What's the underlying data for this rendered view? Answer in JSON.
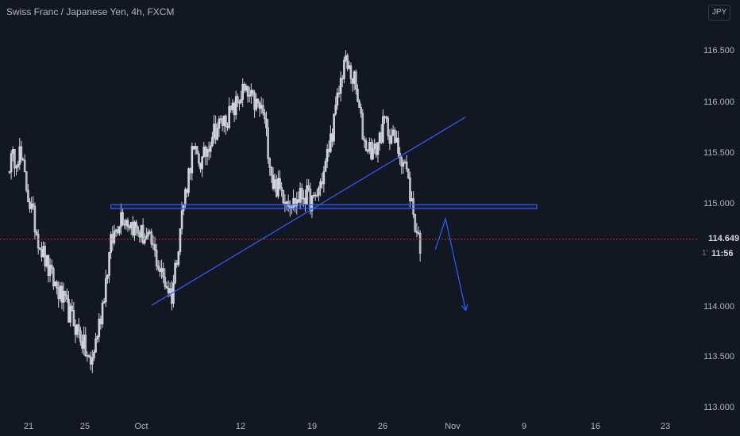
{
  "header": {
    "title": "Swiss Franc / Japanese Yen, 4h, FXCM"
  },
  "axis": {
    "currency": "JPY",
    "price_ticks": [
      "116.500",
      "116.000",
      "115.500",
      "115.000",
      "114.500",
      "114.000",
      "113.500",
      "113.000"
    ],
    "date_ticks": [
      "21",
      "25",
      "Oct",
      "12",
      "19",
      "26",
      "Nov",
      "9",
      "16",
      "23"
    ],
    "current_price": "114.649",
    "countdown_mark": "1'",
    "countdown": "11:56"
  },
  "colors": {
    "background": "#131722",
    "candle": "#d1d4dc",
    "drawing": "#2962ff",
    "price_line": "#f23645"
  },
  "chart_data": {
    "type": "candlestick",
    "title": "Swiss Franc / Japanese Yen, 4h, FXCM",
    "ylim": [
      113.0,
      116.8
    ],
    "grid": false,
    "path": [
      [
        "Sep 18",
        115.4
      ],
      [
        "Sep 19",
        115.5
      ],
      [
        "Sep 20",
        115.0
      ],
      [
        "Sep 21",
        114.6
      ],
      [
        "Sep 22",
        114.3
      ],
      [
        "Sep 23",
        114.1
      ],
      [
        "Sep 24",
        113.9
      ],
      [
        "Sep 25",
        113.7
      ],
      [
        "Sep 26",
        113.4
      ],
      [
        "Sep 27",
        113.9
      ],
      [
        "Sep 28",
        114.6
      ],
      [
        "Sep 29",
        114.9
      ],
      [
        "Sep 30",
        114.8
      ],
      [
        "Oct 1",
        114.7
      ],
      [
        "Oct 2",
        114.6
      ],
      [
        "Oct 3",
        114.3
      ],
      [
        "Oct 4",
        114.1
      ],
      [
        "Oct 5",
        114.9
      ],
      [
        "Oct 6",
        115.5
      ],
      [
        "Oct 7",
        115.4
      ],
      [
        "Oct 8",
        115.7
      ],
      [
        "Oct 9",
        115.8
      ],
      [
        "Oct 10",
        115.9
      ],
      [
        "Oct 11",
        116.1
      ],
      [
        "Oct 12",
        116.0
      ],
      [
        "Oct 13",
        115.9
      ],
      [
        "Oct 14",
        115.2
      ],
      [
        "Oct 15",
        115.1
      ],
      [
        "Oct 16",
        115.0
      ],
      [
        "Oct 17",
        115.1
      ],
      [
        "Oct 18",
        115.0
      ],
      [
        "Oct 19",
        115.3
      ],
      [
        "Oct 20",
        115.8
      ],
      [
        "Oct 21",
        116.4
      ],
      [
        "Oct 22",
        116.2
      ],
      [
        "Oct 23",
        115.6
      ],
      [
        "Oct 24",
        115.5
      ],
      [
        "Oct 25",
        115.8
      ],
      [
        "Oct 26",
        115.6
      ],
      [
        "Oct 27",
        115.4
      ],
      [
        "Oct 28",
        114.8
      ],
      [
        "Oct 29",
        114.4
      ]
    ],
    "drawings": [
      {
        "kind": "trendline",
        "from": [
          "Oct 2",
          114.0
        ],
        "to": [
          "Nov 2",
          115.85
        ]
      },
      {
        "kind": "zone",
        "from": [
          "Sep 28",
          114.99
        ],
        "to": [
          "Nov 9",
          114.95
        ]
      },
      {
        "kind": "price_line",
        "value": 114.649
      },
      {
        "kind": "projection",
        "points": [
          [
            "Oct 30",
            114.55
          ],
          [
            "Oct 31",
            114.85
          ],
          [
            "Nov 2",
            113.95
          ]
        ]
      }
    ]
  }
}
